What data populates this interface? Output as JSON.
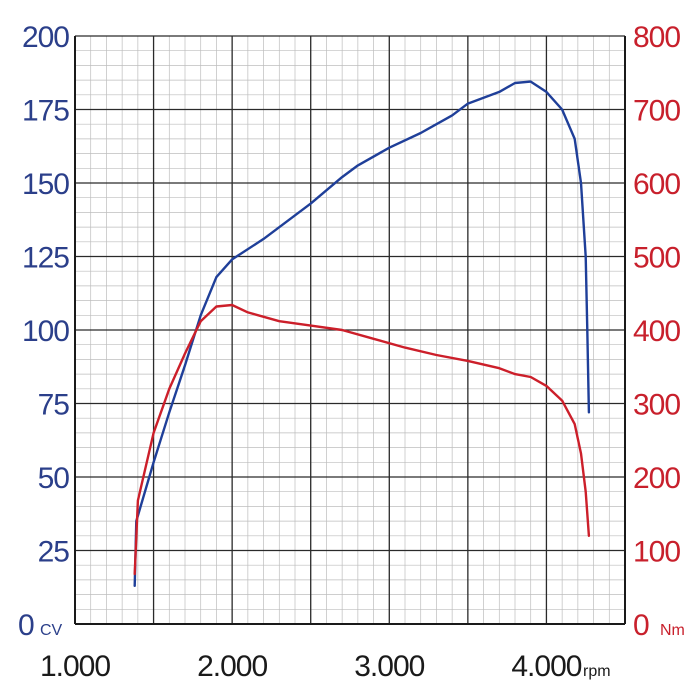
{
  "chart_data": {
    "type": "line",
    "x_axis": {
      "min": 1000,
      "max": 4500,
      "ticks": [
        1000,
        2000,
        3000,
        4000
      ],
      "tick_labels": [
        "1.000",
        "2.000",
        "3.000",
        "4.000"
      ],
      "unit": "rpm"
    },
    "y_left": {
      "min": 0,
      "max": 200,
      "ticks": [
        0,
        25,
        50,
        75,
        100,
        125,
        150,
        175,
        200
      ],
      "tick_labels": [
        "0",
        "25",
        "50",
        "75",
        "100",
        "125",
        "150",
        "175",
        "200"
      ],
      "unit": "CV"
    },
    "y_right": {
      "min": 0,
      "max": 800,
      "ticks": [
        0,
        100,
        200,
        300,
        400,
        500,
        600,
        700,
        800
      ],
      "tick_labels": [
        "0",
        "100",
        "200",
        "300",
        "400",
        "500",
        "600",
        "700",
        "800"
      ],
      "unit": "Nm"
    },
    "grid": true,
    "series": [
      {
        "color": "#1f3f99",
        "axis": "left",
        "points": [
          [
            1380,
            13
          ],
          [
            1390,
            35
          ],
          [
            1500,
            55
          ],
          [
            1600,
            72
          ],
          [
            1700,
            88
          ],
          [
            1800,
            105
          ],
          [
            1900,
            118
          ],
          [
            2000,
            124
          ],
          [
            2200,
            131
          ],
          [
            2500,
            143
          ],
          [
            2700,
            152
          ],
          [
            2800,
            156
          ],
          [
            3000,
            162
          ],
          [
            3200,
            167
          ],
          [
            3400,
            173
          ],
          [
            3500,
            177
          ],
          [
            3600,
            179
          ],
          [
            3700,
            181
          ],
          [
            3800,
            184
          ],
          [
            3900,
            184.5
          ],
          [
            4000,
            181
          ],
          [
            4100,
            175
          ],
          [
            4180,
            165
          ],
          [
            4220,
            150
          ],
          [
            4250,
            125
          ],
          [
            4260,
            100
          ],
          [
            4270,
            72
          ]
        ]
      },
      {
        "color": "#cc1f2a",
        "axis": "left",
        "points": [
          [
            1380,
            17
          ],
          [
            1400,
            42
          ],
          [
            1500,
            65
          ],
          [
            1600,
            80
          ],
          [
            1700,
            92
          ],
          [
            1800,
            103
          ],
          [
            1900,
            108
          ],
          [
            2000,
            108.5
          ],
          [
            2100,
            106
          ],
          [
            2300,
            103
          ],
          [
            2500,
            101.5
          ],
          [
            2700,
            100
          ],
          [
            2900,
            97
          ],
          [
            3100,
            94
          ],
          [
            3300,
            91.5
          ],
          [
            3500,
            89.5
          ],
          [
            3700,
            87
          ],
          [
            3800,
            85
          ],
          [
            3900,
            84
          ],
          [
            4000,
            81
          ],
          [
            4100,
            76
          ],
          [
            4180,
            68
          ],
          [
            4220,
            58
          ],
          [
            4250,
            45
          ],
          [
            4270,
            30
          ]
        ]
      }
    ]
  }
}
